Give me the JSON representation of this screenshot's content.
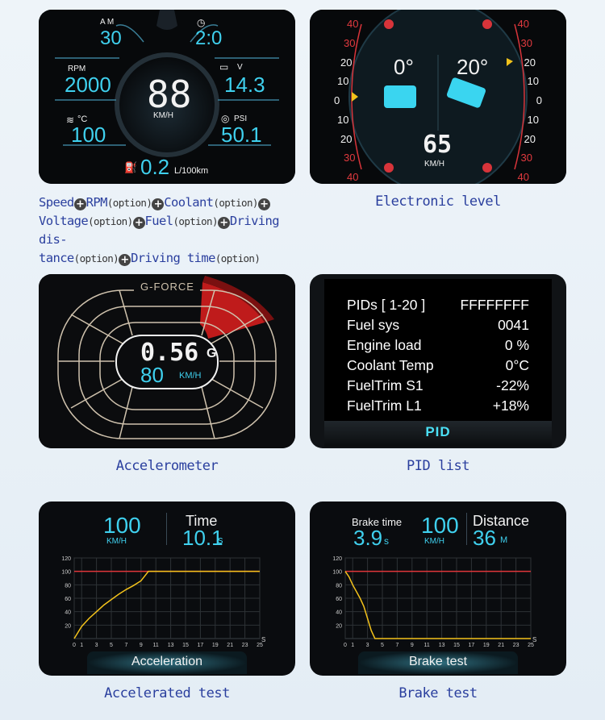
{
  "panel1": {
    "gear_label": "A  M",
    "gear_value": "30",
    "timer_value": "2:0",
    "rpm_label": "RPM",
    "rpm_value": "2000",
    "volt_unit": "V",
    "volt_value": "14.3",
    "speed_value": "88",
    "speed_unit": "KM/H",
    "coolant_unit": "°C",
    "coolant_value": "100",
    "boost_unit": "PSI",
    "boost_value": "50.1",
    "fuel_value": "0.2",
    "fuel_unit": "L/100km"
  },
  "panel2": {
    "roll_value": "0°",
    "pitch_value": "20°",
    "speed_value": "65",
    "speed_unit": "KM/H",
    "scale_ticks": [
      "40",
      "30",
      "20",
      "10",
      "0",
      "10",
      "20",
      "30",
      "40"
    ]
  },
  "panel3": {
    "title": "G-FORCE",
    "g_value": "0.56",
    "g_unit": "G",
    "speed_value": "80",
    "speed_unit": "KM/H"
  },
  "panel4": {
    "rows": [
      {
        "label": "PIDs [ 1-20 ]",
        "value": "FFFFFFFF"
      },
      {
        "label": "Fuel sys",
        "value": "0041"
      },
      {
        "label": "Engine load",
        "value": "0 %"
      },
      {
        "label": "Coolant Temp",
        "value": "0°C"
      },
      {
        "label": "FuelTrim S1",
        "value": "-22%"
      },
      {
        "label": "FuelTrim L1",
        "value": "+18%"
      }
    ],
    "footer": "PID"
  },
  "panel5": {
    "speed_value": "100",
    "speed_unit": "KM/H",
    "time_label": "Time",
    "time_value": "10.1",
    "time_unit": "s",
    "footer": "Acceleration"
  },
  "panel6": {
    "brake_label": "Brake time",
    "brake_value": "3.9",
    "brake_unit": "s",
    "speed_value": "100",
    "speed_unit": "KM/H",
    "distance_label": "Distance",
    "distance_value": "36",
    "distance_unit": "M",
    "footer": "Brake test"
  },
  "captions": {
    "electronic_level": "Electronic level",
    "accelerometer": "Accelerometer",
    "pid_list": "PID list",
    "accelerated_test": "Accelerated test",
    "brake_test": "Brake test"
  },
  "description": {
    "speed": "Speed",
    "rpm": "RPM",
    "coolant": "Coolant",
    "voltage": "Voltage",
    "fuel": "Fuel",
    "driving_distance_1": "Driving dis-",
    "driving_distance_2": "tance",
    "driving_time": "Driving time",
    "option": "(option)",
    "plus": "+"
  },
  "chart_data": [
    {
      "type": "line",
      "name_note": "acceleration",
      "x": [
        0,
        1,
        2,
        3,
        4,
        5,
        6,
        7,
        8,
        9,
        10,
        11,
        25
      ],
      "y": [
        0,
        18,
        30,
        40,
        50,
        58,
        66,
        73,
        79,
        86,
        100,
        100,
        100
      ],
      "threshold": 100,
      "xticks": [
        0,
        1,
        3,
        5,
        7,
        9,
        11,
        13,
        15,
        17,
        19,
        21,
        23,
        25
      ],
      "yticks": [
        20,
        40,
        60,
        80,
        100,
        120
      ],
      "xlabel": "S",
      "xlim": [
        0,
        25
      ],
      "ylim": [
        0,
        120
      ],
      "colors": {
        "line": "#f3c21b",
        "threshold": "#e0363a"
      }
    },
    {
      "type": "line",
      "name_note": "brake",
      "x": [
        0,
        0.5,
        1,
        1.5,
        2,
        2.5,
        3,
        3.5,
        4,
        25
      ],
      "y": [
        100,
        92,
        80,
        70,
        60,
        48,
        30,
        12,
        0,
        0
      ],
      "threshold": 100,
      "xticks": [
        0,
        1,
        3,
        5,
        7,
        9,
        11,
        13,
        15,
        17,
        19,
        21,
        23,
        25
      ],
      "yticks": [
        20,
        40,
        60,
        80,
        100,
        120
      ],
      "xlabel": "S",
      "xlim": [
        0,
        25
      ],
      "ylim": [
        0,
        120
      ],
      "colors": {
        "line": "#f3c21b",
        "threshold": "#e0363a"
      }
    }
  ]
}
